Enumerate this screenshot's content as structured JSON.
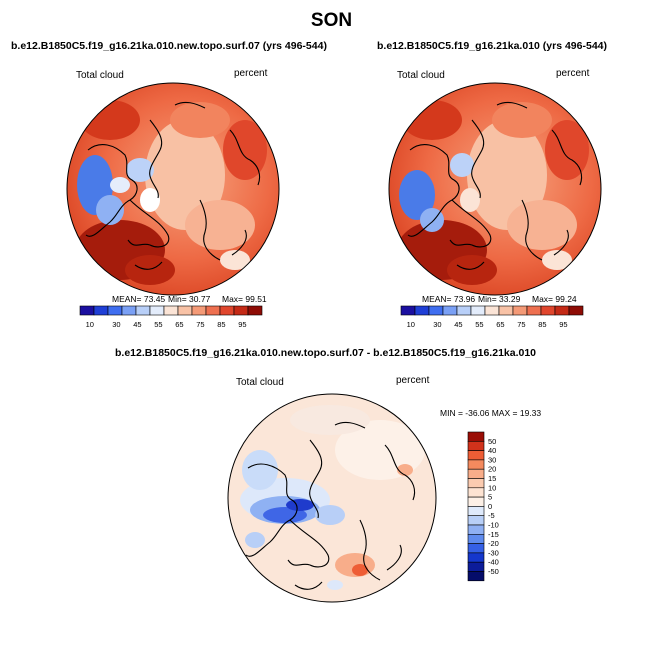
{
  "season": "SON",
  "panels": [
    {
      "title": "b.e12.B1850C5.f19_g16.21ka.010.new.topo.surf.07 (yrs 496-544)",
      "variable": "Total cloud",
      "units": "percent",
      "stats": {
        "mean": "MEAN= 73.45",
        "min": "Min= 30.77",
        "max": "Max= 99.51"
      }
    },
    {
      "title": "b.e12.B1850C5.f19_g16.21ka.010 (yrs 496-544)",
      "variable": "Total cloud",
      "units": "percent",
      "stats": {
        "mean": "MEAN= 73.96",
        "min": "Min= 33.29",
        "max": "Max= 99.24"
      }
    }
  ],
  "colorbar": {
    "labels": [
      "10",
      "30",
      "45",
      "55",
      "65",
      "75",
      "85",
      "95"
    ],
    "colors": [
      "#1b0fa0",
      "#1f3fd6",
      "#3f6ef0",
      "#7aa0f5",
      "#b8cff8",
      "#e3ecfb",
      "#fbe4d6",
      "#f8c2a6",
      "#f49a77",
      "#ee7050",
      "#e0462d",
      "#c42a16",
      "#8e0c05"
    ]
  },
  "diff_panel": {
    "title": "b.e12.B1850C5.f19_g16.21ka.010.new.topo.surf.07 - b.e12.B1850C5.f19_g16.21ka.010",
    "variable": "Total cloud",
    "units": "percent",
    "minmax": "MIN = -36.06 MAX =  19.33",
    "colorbar_labels": [
      "50",
      "40",
      "30",
      "20",
      "15",
      "10",
      "5",
      "0",
      "-5",
      "-10",
      "-15",
      "-20",
      "-30",
      "-40",
      "-50"
    ],
    "colorbar_colors": [
      "#9a0d05",
      "#d1321b",
      "#ee5d35",
      "#f48a5e",
      "#f8ad8a",
      "#fbcbb0",
      "#fde3d2",
      "#fdf0e6",
      "#dfeafb",
      "#b8cff7",
      "#8fb0f3",
      "#5f8bee",
      "#3560e6",
      "#1537cc",
      "#0c1c9a",
      "#050c6a"
    ]
  }
}
